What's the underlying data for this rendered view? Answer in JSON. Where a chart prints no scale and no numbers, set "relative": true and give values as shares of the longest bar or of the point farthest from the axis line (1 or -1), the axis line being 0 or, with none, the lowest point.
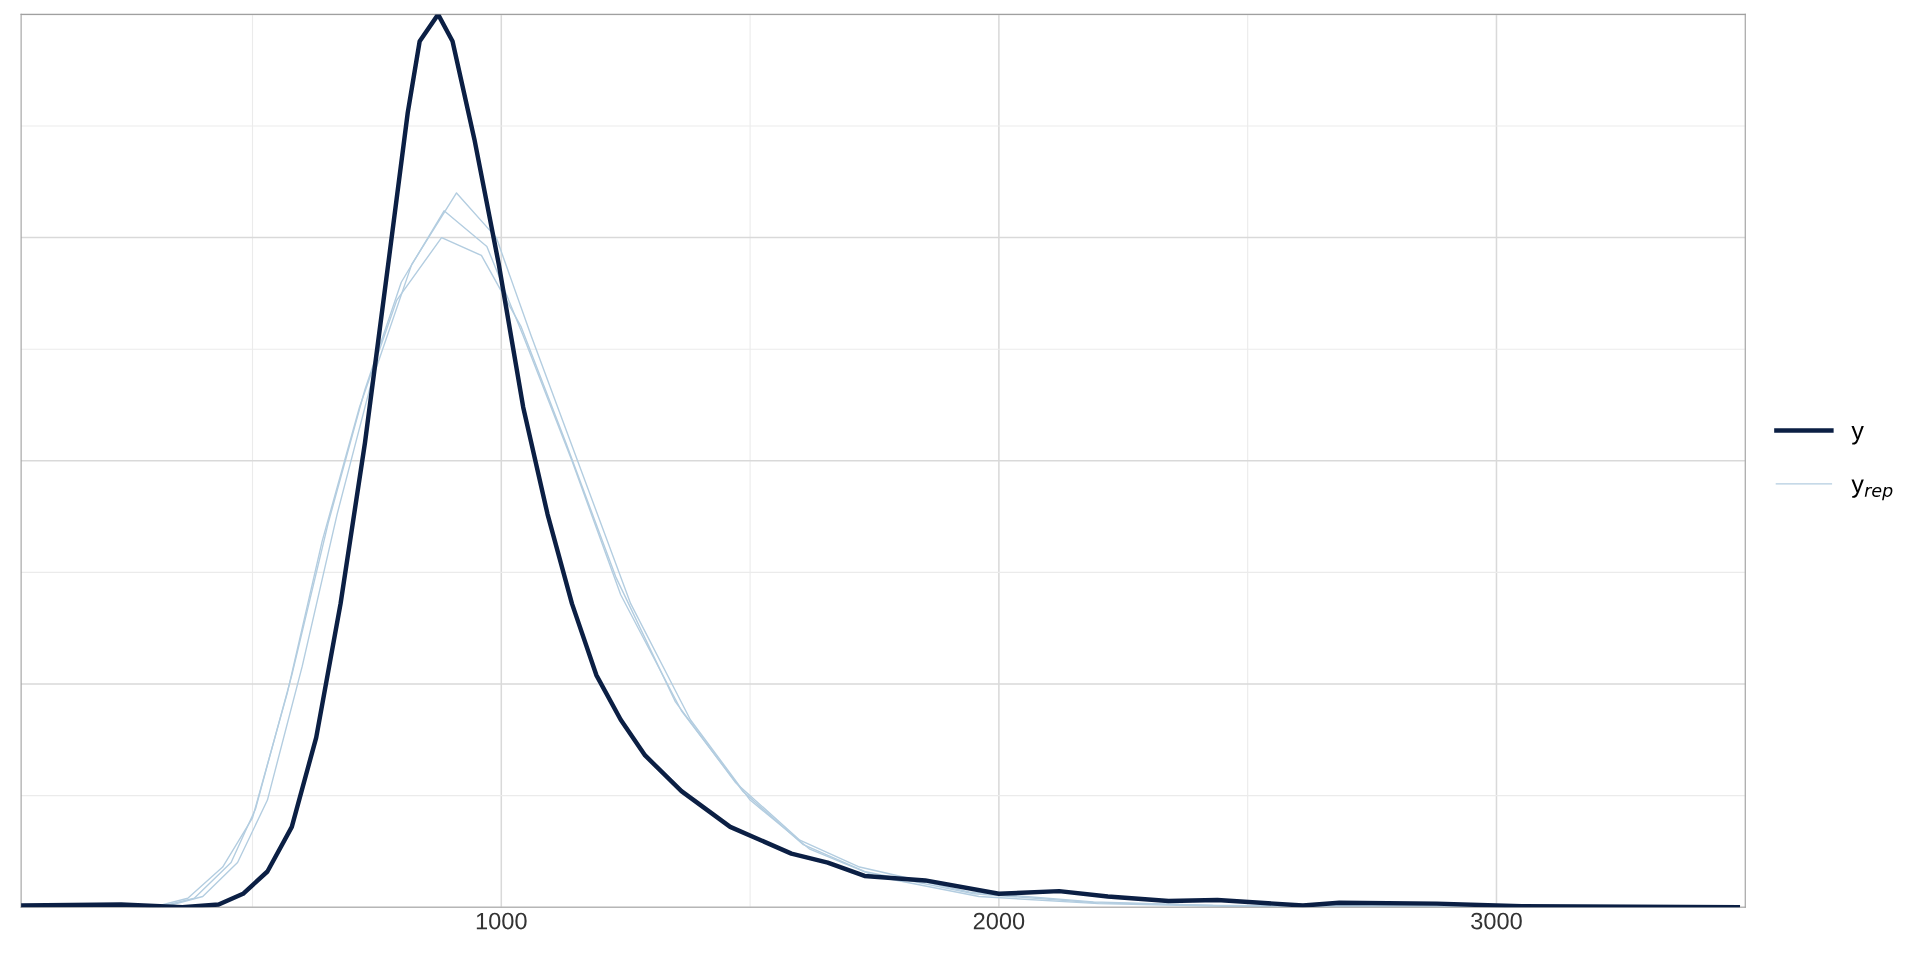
{
  "chart_data": {
    "type": "line",
    "relative": true,
    "tick_labels": "x",
    "grid": true,
    "legend": "right",
    "xlim": [
      35,
      3485
    ],
    "xticks": [
      1000,
      2000,
      3000
    ],
    "series": [
      {
        "name": "y$_{rep}$",
        "color": "#b3cde0",
        "x": [
          310,
          383,
          457,
          506,
          579,
          652,
          726,
          799,
          885,
          971,
          1044,
          1142,
          1240,
          1362,
          1485,
          1607,
          1730,
          1950,
          2195,
          2440,
          3485
        ],
        "values": [
          0,
          0.01,
          0.05,
          0.11,
          0.26,
          0.43,
          0.58,
          0.7,
          0.78,
          0.74,
          0.64,
          0.5,
          0.35,
          0.22,
          0.13,
          0.07,
          0.04,
          0.015,
          0.005,
          0.002,
          0
        ]
      },
      {
        "color": "#b3cde0",
        "x": [
          320,
          400,
          470,
          530,
          600,
          670,
          740,
          820,
          910,
          990,
          1060,
          1160,
          1260,
          1380,
          1500,
          1620,
          1750,
          1960,
          2200,
          2450,
          3485
        ],
        "values": [
          0,
          0.012,
          0.05,
          0.12,
          0.27,
          0.44,
          0.59,
          0.72,
          0.8,
          0.75,
          0.64,
          0.49,
          0.34,
          0.21,
          0.12,
          0.065,
          0.035,
          0.012,
          0.004,
          0.001,
          0
        ]
      },
      {
        "color": "#b3cde0",
        "x": [
          300,
          370,
          440,
          500,
          570,
          640,
          715,
          790,
          880,
          960,
          1040,
          1130,
          1230,
          1350,
          1470,
          1600,
          1720,
          1940,
          2190,
          2430,
          3485
        ],
        "values": [
          0,
          0.01,
          0.045,
          0.1,
          0.24,
          0.41,
          0.56,
          0.68,
          0.75,
          0.73,
          0.65,
          0.52,
          0.37,
          0.23,
          0.14,
          0.075,
          0.045,
          0.017,
          0.006,
          0.002,
          0
        ]
      },
      {
        "name": "y",
        "color": "#0b1f44",
        "x": [
          35,
          236,
          359,
          432,
          481,
          530,
          579,
          628,
          677,
          726,
          775,
          812,
          836,
          873,
          902,
          946,
          995,
          1044,
          1093,
          1142,
          1191,
          1240,
          1289,
          1362,
          1460,
          1583,
          1656,
          1730,
          1852,
          2000,
          2121,
          2219,
          2341,
          2439,
          2611,
          2684,
          2880,
          3051,
          3485
        ],
        "values": [
          0.002,
          0.003,
          0,
          0.003,
          0.015,
          0.04,
          0.09,
          0.19,
          0.34,
          0.52,
          0.73,
          0.89,
          0.97,
          1,
          0.97,
          0.86,
          0.72,
          0.56,
          0.44,
          0.34,
          0.26,
          0.21,
          0.17,
          0.13,
          0.09,
          0.06,
          0.05,
          0.035,
          0.03,
          0.015,
          0.018,
          0.012,
          0.007,
          0.008,
          0.002,
          0.005,
          0.004,
          0.001,
          0
        ]
      }
    ]
  }
}
